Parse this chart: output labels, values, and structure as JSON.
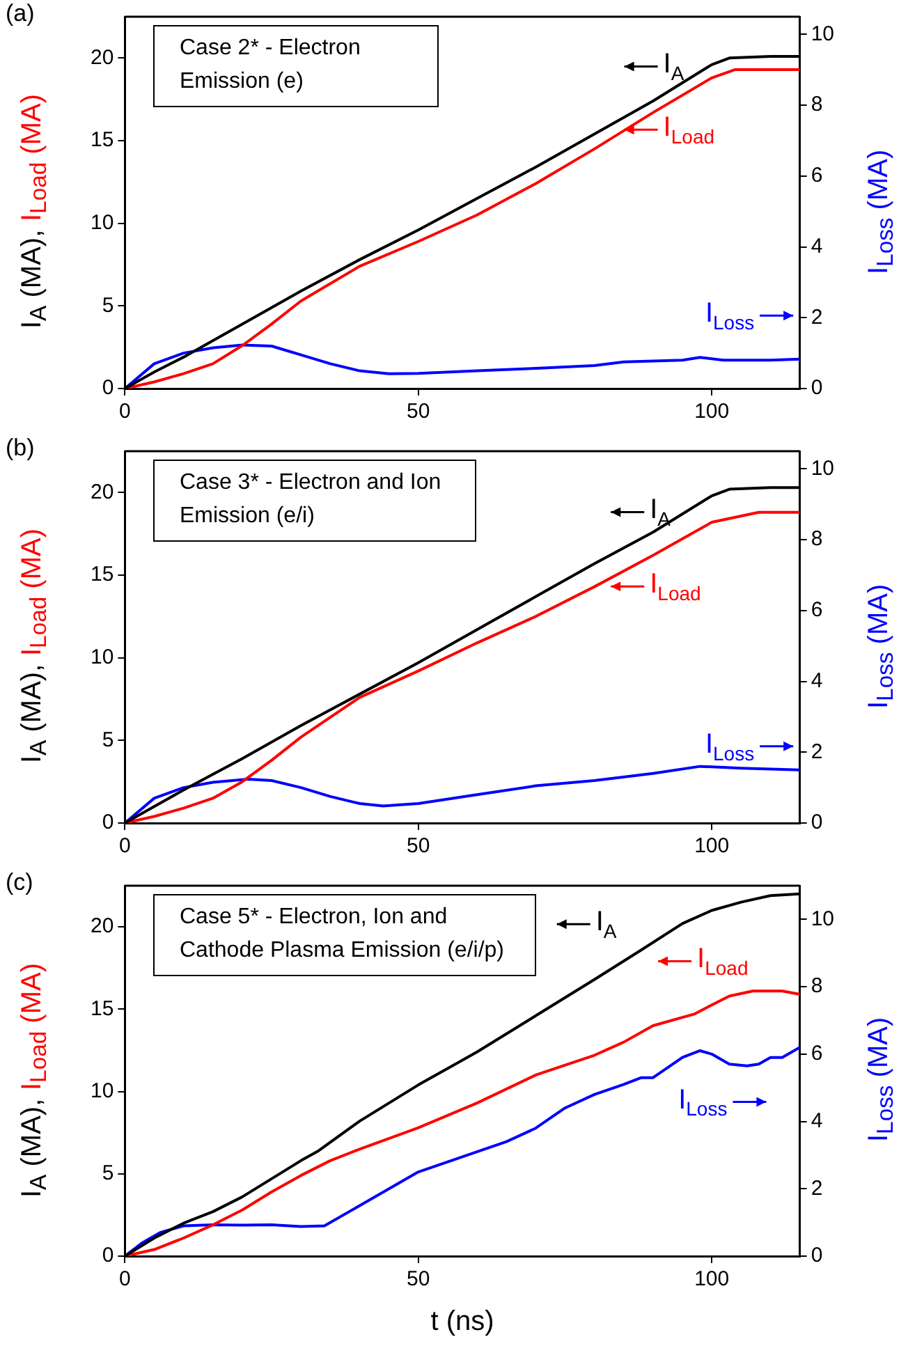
{
  "chart_data": [
    {
      "type": "line",
      "title": "(a)",
      "annotations": [
        "Case 2* - Electron Emission (e)"
      ],
      "ylabel": "I$_{A}$ (MA), I$_{Load}$ (MA)",
      "y2label": "I$_{Loss}$ (MA)",
      "xlim": [
        0,
        115
      ],
      "xticks": [
        0,
        50,
        100
      ],
      "ylim": [
        0,
        22.5
      ],
      "yticks": [
        0,
        5,
        10,
        15,
        20
      ],
      "y2lim": [
        0,
        10.5
      ],
      "y2ticks": [
        0,
        2,
        4,
        6,
        8,
        10
      ],
      "grid": false,
      "legend": "top right",
      "marker": "none",
      "line_style": "solid",
      "series": [
        {
          "name": "I$_{A}$",
          "color": "#000000",
          "x": [
            0,
            5,
            10,
            20,
            30,
            40,
            50,
            60,
            70,
            80,
            90,
            100,
            103,
            110,
            115
          ],
          "values": [
            0,
            1.0,
            1.9,
            3.9,
            5.9,
            7.8,
            9.6,
            11.5,
            13.4,
            15.4,
            17.4,
            19.6,
            20.0,
            20.1,
            20.1
          ]
        },
        {
          "name": "I$_{Load}$",
          "color": "#ff0000",
          "x": [
            0,
            5,
            10,
            15,
            20,
            25,
            30,
            40,
            50,
            60,
            70,
            80,
            90,
            100,
            104,
            110,
            115
          ],
          "values": [
            0,
            0.4,
            0.9,
            1.5,
            2.6,
            3.9,
            5.3,
            7.4,
            8.9,
            10.5,
            12.4,
            14.5,
            16.7,
            18.8,
            19.3,
            19.3,
            19.3
          ]
        },
        {
          "name": "I$_{Loss}$",
          "color": "#0000ff",
          "axis": "y2",
          "x": [
            0,
            5,
            10,
            15,
            20,
            25,
            30,
            35,
            40,
            45,
            50,
            60,
            70,
            80,
            85,
            95,
            98,
            102,
            110,
            115
          ],
          "values": [
            0,
            0.7,
            1.0,
            1.15,
            1.23,
            1.2,
            0.95,
            0.7,
            0.5,
            0.42,
            0.43,
            0.5,
            0.57,
            0.65,
            0.75,
            0.8,
            0.88,
            0.8,
            0.8,
            0.83
          ]
        }
      ]
    },
    {
      "type": "line",
      "title": "(b)",
      "annotations": [
        "Case 3* - Electron and Ion Emission (e/i)"
      ],
      "ylabel": "I$_{A}$ (MA), I$_{Load}$ (MA)",
      "y2label": "I$_{Loss}$ (MA)",
      "xlim": [
        0,
        115
      ],
      "xticks": [
        0,
        50,
        100
      ],
      "ylim": [
        0,
        22.5
      ],
      "yticks": [
        0,
        5,
        10,
        15,
        20
      ],
      "y2lim": [
        0,
        10.5
      ],
      "y2ticks": [
        0,
        2,
        4,
        6,
        8,
        10
      ],
      "grid": false,
      "legend": "top right",
      "marker": "none",
      "line_style": "solid",
      "series": [
        {
          "name": "I$_{A}$",
          "color": "#000000",
          "x": [
            0,
            5,
            10,
            20,
            30,
            40,
            50,
            60,
            70,
            80,
            90,
            100,
            103,
            110,
            115
          ],
          "values": [
            0,
            1.0,
            2.0,
            3.9,
            5.9,
            7.8,
            9.7,
            11.7,
            13.7,
            15.7,
            17.6,
            19.8,
            20.2,
            20.3,
            20.3
          ]
        },
        {
          "name": "I$_{Load}$",
          "color": "#ff0000",
          "x": [
            0,
            5,
            10,
            15,
            20,
            25,
            30,
            40,
            50,
            60,
            70,
            80,
            90,
            100,
            108,
            115
          ],
          "values": [
            0,
            0.4,
            0.9,
            1.5,
            2.5,
            3.8,
            5.2,
            7.6,
            9.2,
            10.9,
            12.5,
            14.3,
            16.2,
            18.2,
            18.8,
            18.8
          ]
        },
        {
          "name": "I$_{Loss}$",
          "color": "#0000ff",
          "axis": "y2",
          "x": [
            0,
            5,
            10,
            15,
            21,
            25,
            30,
            35,
            40,
            44,
            50,
            60,
            70,
            80,
            90,
            98,
            105,
            115
          ],
          "values": [
            0,
            0.7,
            1.0,
            1.15,
            1.24,
            1.2,
            1.0,
            0.75,
            0.55,
            0.48,
            0.55,
            0.8,
            1.05,
            1.2,
            1.4,
            1.6,
            1.55,
            1.5
          ]
        }
      ]
    },
    {
      "type": "line",
      "title": "(c)",
      "annotations": [
        "Case 5* - Electron, Ion and Cathode Plasma Emission (e/i/p)"
      ],
      "xlabel": "t (ns)",
      "ylabel": "I$_{A}$ (MA), I$_{Load}$ (MA)",
      "y2label": "I$_{Loss}$ (MA)",
      "xlim": [
        0,
        115
      ],
      "xticks": [
        0,
        50,
        100
      ],
      "ylim": [
        0,
        22.5
      ],
      "yticks": [
        0,
        5,
        10,
        15,
        20
      ],
      "y2lim": [
        0,
        11
      ],
      "y2ticks": [
        0,
        2,
        4,
        6,
        8,
        10
      ],
      "grid": false,
      "legend": "top right",
      "marker": "none",
      "line_style": "solid",
      "series": [
        {
          "name": "I$_{A}$",
          "color": "#000000",
          "x": [
            0,
            5,
            10,
            15,
            20,
            25,
            30,
            33,
            40,
            50,
            60,
            70,
            80,
            88,
            95,
            100,
            105,
            110,
            115
          ],
          "values": [
            0,
            1.1,
            2.0,
            2.7,
            3.6,
            4.7,
            5.8,
            6.4,
            8.2,
            10.4,
            12.4,
            14.6,
            16.8,
            18.6,
            20.2,
            21.0,
            21.5,
            21.9,
            22.0
          ]
        },
        {
          "name": "I$_{Load}$",
          "color": "#ff0000",
          "x": [
            0,
            5,
            10,
            15,
            20,
            25,
            30,
            35,
            40,
            50,
            60,
            70,
            80,
            85,
            90,
            97,
            103,
            107,
            112,
            115
          ],
          "values": [
            0,
            0.4,
            1.1,
            1.9,
            2.8,
            3.9,
            4.9,
            5.8,
            6.5,
            7.8,
            9.3,
            11.0,
            12.2,
            13.0,
            14.0,
            14.7,
            15.8,
            16.1,
            16.1,
            15.9
          ]
        },
        {
          "name": "I$_{Loss}$",
          "color": "#0000ff",
          "axis": "y2",
          "x": [
            0,
            3,
            6,
            10,
            15,
            20,
            25,
            30,
            34,
            40,
            45,
            50,
            55,
            60,
            65,
            70,
            75,
            80,
            85,
            88,
            90,
            95,
            98,
            100,
            103,
            106,
            108,
            110,
            112,
            115
          ],
          "values": [
            0,
            0.4,
            0.7,
            0.9,
            0.93,
            0.92,
            0.93,
            0.88,
            0.9,
            1.5,
            2.0,
            2.5,
            2.8,
            3.1,
            3.4,
            3.8,
            4.4,
            4.8,
            5.1,
            5.3,
            5.3,
            5.9,
            6.1,
            6.0,
            5.7,
            5.65,
            5.7,
            5.9,
            5.9,
            6.2
          ]
        }
      ]
    }
  ]
}
